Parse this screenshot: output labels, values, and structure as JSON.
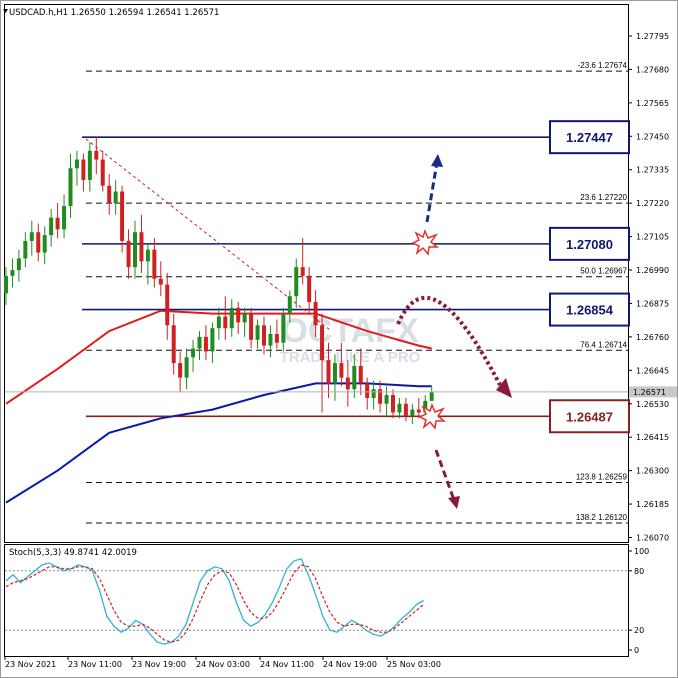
{
  "header": {
    "symbol_line": "USDCAD.h,H1  1.26550 1.26594 1.26541 1.26571",
    "stoch_line": "Stoch(5,3,3) 49.8741 42.0019"
  },
  "watermark": {
    "brand": "OCTAFX",
    "slogan": "TRADE LIKE A PRO"
  },
  "colors": {
    "bull": "#1e8c1e",
    "bear": "#d12020",
    "ma_red": "#e31a1a",
    "ma_blue": "#0a1aa8",
    "level_navy": "#0f1870",
    "level_brown": "#8b2020",
    "stoch_main": "#2fb3d6",
    "stoch_signal": "#d42020",
    "arrow_blue": "#1a2a88",
    "arrow_maroon": "#8b1a3a"
  },
  "chart_data": {
    "type": "candlestick",
    "price_axis": {
      "ylim": [
        1.2607,
        1.2788
      ],
      "ticks": [
        "1.27795",
        "1.27680",
        "1.27565",
        "1.27450",
        "1.27335",
        "1.27220",
        "1.27105",
        "1.26990",
        "1.26875",
        "1.26760",
        "1.26645",
        "1.26530",
        "1.26415",
        "1.26300",
        "1.26185",
        "1.26070"
      ],
      "current_price": "1.26571"
    },
    "time_axis": {
      "labels": [
        "23 Nov 2021",
        "23 Nov 11:00",
        "23 Nov 19:00",
        "24 Nov 03:00",
        "24 Nov 11:00",
        "24 Nov 19:00",
        "25 Nov 03:00"
      ],
      "label_bars": [
        0,
        12,
        24,
        36,
        48,
        60,
        72
      ]
    },
    "key_levels": [
      {
        "label": "1.27447",
        "value": 1.27447,
        "color": "navy"
      },
      {
        "label": "1.27080",
        "value": 1.2708,
        "color": "navy"
      },
      {
        "label": "1.26854",
        "value": 1.26854,
        "color": "navy"
      },
      {
        "label": "1.26487",
        "value": 1.26487,
        "color": "brown"
      }
    ],
    "fibonacci": [
      {
        "label": "-23.6  1.27674",
        "value": 1.27674
      },
      {
        "label": "23.6  1.27220",
        "value": 1.2722
      },
      {
        "label": "50.0  1.26967",
        "value": 1.26967
      },
      {
        "label": "76.4  1.26714",
        "value": 1.26714
      },
      {
        "label": "123.8  1.26259",
        "value": 1.26259
      },
      {
        "label": "138.2  1.26120",
        "value": 1.2612
      }
    ],
    "candles": [
      [
        1.2691,
        1.27,
        1.2687,
        1.2697
      ],
      [
        1.2697,
        1.2703,
        1.2693,
        1.2699
      ],
      [
        1.2699,
        1.2706,
        1.2695,
        1.2703
      ],
      [
        1.2703,
        1.2712,
        1.27,
        1.2709
      ],
      [
        1.2709,
        1.2716,
        1.2704,
        1.2712
      ],
      [
        1.2712,
        1.2715,
        1.2702,
        1.2705
      ],
      [
        1.2705,
        1.2714,
        1.2701,
        1.2711
      ],
      [
        1.2711,
        1.272,
        1.2707,
        1.2717
      ],
      [
        1.2717,
        1.2722,
        1.271,
        1.2713
      ],
      [
        1.2713,
        1.2725,
        1.271,
        1.2721
      ],
      [
        1.2721,
        1.2739,
        1.2717,
        1.2734
      ],
      [
        1.2734,
        1.274,
        1.2728,
        1.2737
      ],
      [
        1.2737,
        1.2739,
        1.2726,
        1.273
      ],
      [
        1.273,
        1.2743,
        1.2726,
        1.274
      ],
      [
        1.274,
        1.2745,
        1.2732,
        1.2737
      ],
      [
        1.2737,
        1.274,
        1.2726,
        1.2728
      ],
      [
        1.2728,
        1.2732,
        1.2718,
        1.2722
      ],
      [
        1.2722,
        1.273,
        1.2718,
        1.2726
      ],
      [
        1.2726,
        1.2728,
        1.2705,
        1.2709
      ],
      [
        1.2709,
        1.2713,
        1.2696,
        1.27
      ],
      [
        1.27,
        1.2716,
        1.2696,
        1.2712
      ],
      [
        1.2712,
        1.2718,
        1.2698,
        1.2702
      ],
      [
        1.2702,
        1.2708,
        1.2694,
        1.2706
      ],
      [
        1.2706,
        1.271,
        1.2693,
        1.2696
      ],
      [
        1.2696,
        1.2702,
        1.269,
        1.2694
      ],
      [
        1.2694,
        1.2698,
        1.2675,
        1.268
      ],
      [
        1.268,
        1.2684,
        1.2663,
        1.2667
      ],
      [
        1.2667,
        1.2671,
        1.2657,
        1.2662
      ],
      [
        1.2662,
        1.2672,
        1.2658,
        1.2669
      ],
      [
        1.2669,
        1.2675,
        1.2664,
        1.2672
      ],
      [
        1.2672,
        1.2678,
        1.2668,
        1.2676
      ],
      [
        1.2676,
        1.268,
        1.2668,
        1.2671
      ],
      [
        1.2671,
        1.2681,
        1.2667,
        1.2679
      ],
      [
        1.2679,
        1.2686,
        1.2675,
        1.2683
      ],
      [
        1.2683,
        1.269,
        1.2675,
        1.2679
      ],
      [
        1.2679,
        1.2689,
        1.2676,
        1.2686
      ],
      [
        1.2686,
        1.2688,
        1.2677,
        1.2681
      ],
      [
        1.2681,
        1.2686,
        1.2676,
        1.2684
      ],
      [
        1.2684,
        1.2686,
        1.2672,
        1.2675
      ],
      [
        1.2675,
        1.2682,
        1.2672,
        1.268
      ],
      [
        1.268,
        1.2683,
        1.267,
        1.2673
      ],
      [
        1.2673,
        1.268,
        1.2669,
        1.2677
      ],
      [
        1.2677,
        1.2682,
        1.2672,
        1.2674
      ],
      [
        1.2674,
        1.2686,
        1.2671,
        1.2684
      ],
      [
        1.2684,
        1.2692,
        1.2681,
        1.269
      ],
      [
        1.269,
        1.2703,
        1.2686,
        1.27
      ],
      [
        1.27,
        1.271,
        1.2694,
        1.2697
      ],
      [
        1.2697,
        1.27,
        1.2684,
        1.2688
      ],
      [
        1.2688,
        1.2692,
        1.2676,
        1.268
      ],
      [
        1.268,
        1.2684,
        1.265,
        1.2668
      ],
      [
        1.2668,
        1.2674,
        1.2655,
        1.266
      ],
      [
        1.266,
        1.267,
        1.2654,
        1.2667
      ],
      [
        1.2667,
        1.2674,
        1.2659,
        1.2662
      ],
      [
        1.2662,
        1.2668,
        1.2652,
        1.2658
      ],
      [
        1.2658,
        1.267,
        1.2655,
        1.2666
      ],
      [
        1.2666,
        1.2672,
        1.2656,
        1.266
      ],
      [
        1.266,
        1.2662,
        1.2651,
        1.2655
      ],
      [
        1.2655,
        1.2661,
        1.2651,
        1.2658
      ],
      [
        1.2658,
        1.2661,
        1.265,
        1.2653
      ],
      [
        1.2653,
        1.2659,
        1.2649,
        1.2656
      ],
      [
        1.2656,
        1.2658,
        1.2648,
        1.265
      ],
      [
        1.265,
        1.2655,
        1.2648,
        1.2653
      ],
      [
        1.2653,
        1.2655,
        1.2647,
        1.2649
      ],
      [
        1.2649,
        1.2653,
        1.2646,
        1.2651
      ],
      [
        1.2651,
        1.2655,
        1.2648,
        1.265
      ],
      [
        1.265,
        1.2656,
        1.2649,
        1.2654
      ],
      [
        1.2654,
        1.2659,
        1.2654,
        1.2657
      ]
    ],
    "ma_red": [
      [
        0,
        1.2653
      ],
      [
        8,
        1.2665
      ],
      [
        16,
        1.2678
      ],
      [
        24,
        1.2685
      ],
      [
        32,
        1.2684
      ],
      [
        40,
        1.2684
      ],
      [
        48,
        1.2684
      ],
      [
        56,
        1.2678
      ],
      [
        64,
        1.2673
      ],
      [
        66,
        1.2672
      ]
    ],
    "ma_blue": [
      [
        0,
        1.2619
      ],
      [
        8,
        1.263
      ],
      [
        16,
        1.2643
      ],
      [
        24,
        1.2648
      ],
      [
        32,
        1.2651
      ],
      [
        40,
        1.2656
      ],
      [
        48,
        1.266
      ],
      [
        56,
        1.266
      ],
      [
        64,
        1.2659
      ],
      [
        66,
        1.2659
      ]
    ],
    "stochastic": {
      "ylim": [
        0,
        100
      ],
      "ticks": [
        "100",
        "80",
        "20",
        "0"
      ],
      "main": [
        70,
        76,
        68,
        74,
        80,
        86,
        88,
        84,
        80,
        82,
        86,
        84,
        80,
        60,
        34,
        24,
        18,
        22,
        30,
        26,
        16,
        8,
        6,
        8,
        14,
        26,
        48,
        70,
        80,
        84,
        82,
        70,
        48,
        30,
        24,
        28,
        36,
        48,
        64,
        82,
        90,
        92,
        76,
        56,
        34,
        20,
        18,
        24,
        30,
        26,
        20,
        16,
        14,
        18,
        24,
        32,
        38,
        46,
        50
      ],
      "signal": [
        64,
        68,
        70,
        72,
        76,
        80,
        84,
        84,
        82,
        82,
        84,
        84,
        82,
        72,
        56,
        40,
        28,
        24,
        24,
        26,
        22,
        16,
        10,
        8,
        10,
        18,
        32,
        50,
        66,
        76,
        80,
        78,
        66,
        50,
        38,
        32,
        32,
        38,
        50,
        64,
        78,
        86,
        84,
        72,
        54,
        38,
        28,
        24,
        26,
        26,
        24,
        20,
        18,
        18,
        22,
        28,
        34,
        40,
        46
      ]
    }
  }
}
